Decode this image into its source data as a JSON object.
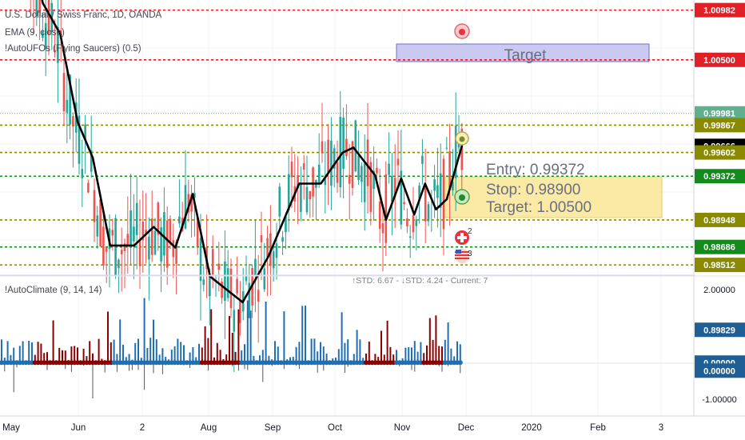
{
  "header": {
    "symbol_line": "U.S. Dollar / Swiss Franc, 1D, OANDA",
    "ema_line": "EMA (9, close)",
    "ufo_line": "!AutoUFOs (Flying Saucers) (0.5)",
    "climate_line": "!AutoClimate (9, 14, 14)",
    "std_line": "↑STD: 6.67 - ↓STD: 4.24 - Current: 7"
  },
  "colors": {
    "up": "#26a69a",
    "down": "#ef5350",
    "ema": "#000000",
    "red_level": "#e01f26",
    "green_level": "#138a1b",
    "olive_level": "#8a8a00",
    "climate_blue": "#1f6fb2",
    "climate_red": "#8b0000",
    "target_box_fill": "#c9c9f2",
    "trade_box_fill": "#fbe9a6"
  },
  "annotations": {
    "target_box": "Target",
    "entry": "Entry: 0.99372",
    "stop": "Stop: 0.98900",
    "target": "Target: 1.00500",
    "saucer_upper_count": "2",
    "saucer_lower_count": "3"
  },
  "chart_data": [
    {
      "type": "candlestick",
      "title": "U.S. Dollar / Swiss Franc, 1D, OANDA",
      "ylim": [
        0.9842,
        1.0108
      ],
      "price_levels": [
        {
          "value": 1.00982,
          "label": "1.00982",
          "style": "red"
        },
        {
          "value": 1.005,
          "label": "1.00500",
          "style": "red"
        },
        {
          "value": 0.99981,
          "label": "0.99981",
          "style": "current"
        },
        {
          "value": 0.99867,
          "label": "0.99867",
          "style": "olive"
        },
        {
          "value": 0.99666,
          "label": "0.99666",
          "style": "ema"
        },
        {
          "value": 0.99602,
          "label": "0.99602",
          "style": "olive"
        },
        {
          "value": 0.99372,
          "label": "0.99372",
          "style": "green"
        },
        {
          "value": 0.98948,
          "label": "0.98948",
          "style": "olive"
        },
        {
          "value": 0.98686,
          "label": "0.98686",
          "style": "green"
        },
        {
          "value": 0.98512,
          "label": "0.98512",
          "style": "olive"
        }
      ],
      "x_axis_labels": [
        "May",
        "Jun",
        "2",
        "Aug",
        "Sep",
        "Oct",
        "Nov",
        "Dec",
        "2020",
        "Feb",
        "3"
      ],
      "ema_approx_path": [
        {
          "date": "2019-05-10",
          "value": 1.019
        },
        {
          "date": "2019-05-20",
          "value": 1.0105
        },
        {
          "date": "2019-05-28",
          "value": 1.0075
        },
        {
          "date": "2019-06-05",
          "value": 0.999
        },
        {
          "date": "2019-06-12",
          "value": 0.9955
        },
        {
          "date": "2019-06-20",
          "value": 0.987
        },
        {
          "date": "2019-07-01",
          "value": 0.987
        },
        {
          "date": "2019-07-10",
          "value": 0.9888
        },
        {
          "date": "2019-07-20",
          "value": 0.9868
        },
        {
          "date": "2019-07-28",
          "value": 0.992
        },
        {
          "date": "2019-08-05",
          "value": 0.984
        },
        {
          "date": "2019-08-20",
          "value": 0.9815
        },
        {
          "date": "2019-09-01",
          "value": 0.986
        },
        {
          "date": "2019-09-15",
          "value": 0.993
        },
        {
          "date": "2019-09-25",
          "value": 0.993
        },
        {
          "date": "2019-10-05",
          "value": 0.996
        },
        {
          "date": "2019-10-10",
          "value": 0.9965
        },
        {
          "date": "2019-10-20",
          "value": 0.9938
        },
        {
          "date": "2019-10-25",
          "value": 0.9895
        },
        {
          "date": "2019-11-01",
          "value": 0.9935
        },
        {
          "date": "2019-11-07",
          "value": 0.99
        },
        {
          "date": "2019-11-12",
          "value": 0.993
        },
        {
          "date": "2019-11-17",
          "value": 0.9905
        },
        {
          "date": "2019-11-22",
          "value": 0.9915
        },
        {
          "date": "2019-11-29",
          "value": 0.9967
        }
      ]
    },
    {
      "type": "bar",
      "title": "!AutoClimate (9, 14, 14)",
      "ylim": [
        -1.2,
        2.0
      ],
      "ytick_labels": [
        "2.00000",
        "0.89829",
        "0.00000",
        "0.00000",
        "-1.00000"
      ],
      "last_value": 0.89829
    }
  ]
}
